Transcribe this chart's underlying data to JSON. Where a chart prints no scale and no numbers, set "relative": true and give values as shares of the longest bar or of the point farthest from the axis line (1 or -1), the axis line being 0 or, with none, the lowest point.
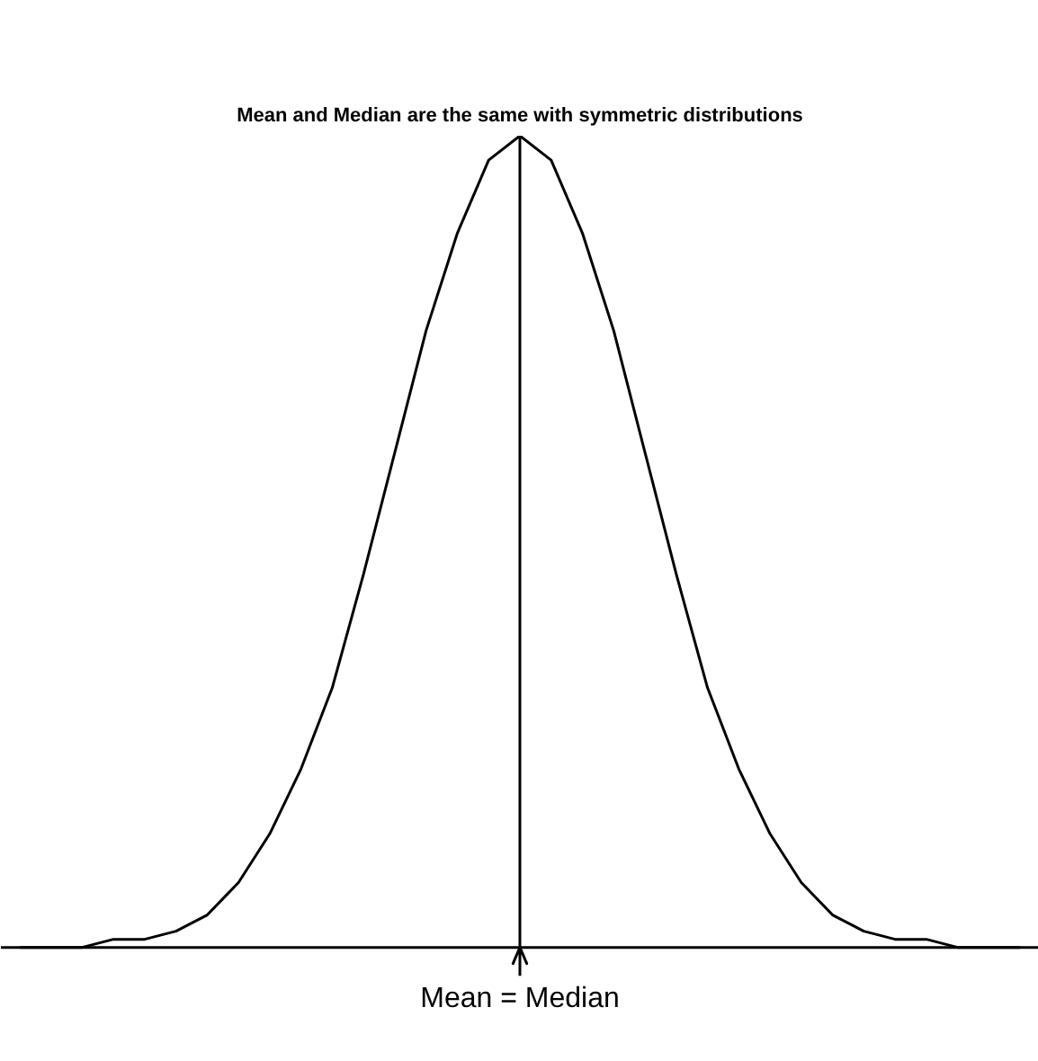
{
  "chart_data": {
    "type": "line",
    "title": "Mean and Median are the same with symmetric distributions",
    "relative": true,
    "categories": [
      null,
      null,
      null,
      null,
      null,
      null,
      null,
      null,
      null,
      null,
      null,
      null,
      null,
      null,
      null,
      null,
      null,
      null,
      null,
      null,
      null,
      null,
      null,
      null,
      null,
      null,
      null,
      null,
      null,
      null,
      null,
      null,
      null
    ],
    "series": [
      {
        "color": "#000000",
        "values": [
          0,
          0,
          0,
          0.01,
          0.01,
          0.02,
          0.04,
          0.08,
          0.14,
          0.22,
          0.32,
          0.46,
          0.61,
          0.76,
          0.88,
          0.97,
          1,
          0.97,
          0.88,
          0.76,
          0.61,
          0.46,
          0.32,
          0.22,
          0.14,
          0.08,
          0.04,
          0.02,
          0.01,
          0.01,
          0,
          0,
          0
        ]
      }
    ],
    "annotations": [
      "Mean = Median"
    ],
    "grid": false,
    "marker": "none",
    "line_style": "solid"
  }
}
